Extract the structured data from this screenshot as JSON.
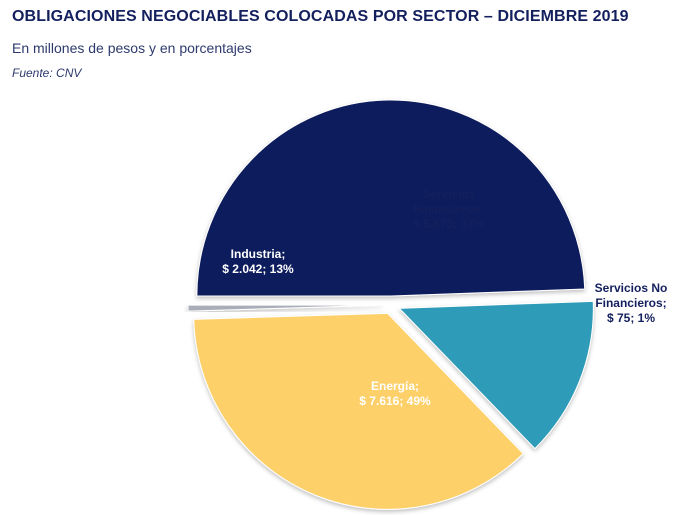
{
  "header": {
    "title": "OBLIGACIONES NEGOCIABLES COLOCADAS POR SECTOR – DICIEMBRE 2019",
    "subtitle": "En millones de pesos y en porcentajes",
    "source": "Fuente: CNV"
  },
  "chart_data": {
    "type": "pie",
    "title": "OBLIGACIONES NEGOCIABLES COLOCADAS POR SECTOR – DICIEMBRE 2019",
    "subtitle": "En millones de pesos y en porcentajes",
    "exploded": true,
    "slices": [
      {
        "name": "Energía",
        "value": 7616,
        "percent": 49,
        "color": "#0e1a5c",
        "label_color": "#ffffff",
        "label_lines": [
          "Energía;",
          "$ 7.616; 49%"
        ]
      },
      {
        "name": "Industria",
        "value": 2042,
        "percent": 13,
        "color": "#2f9bb8",
        "label_color": "#ffffff",
        "label_lines": [
          "Industria;",
          "$ 2.042; 13%"
        ]
      },
      {
        "name": "Servicios Financieros",
        "value": 5673,
        "percent": 37,
        "color": "#fdd069",
        "label_color": "#14205e",
        "label_lines": [
          "Servicios",
          "Financieros;",
          "$ 5.673; 37%"
        ]
      },
      {
        "name": "Servicios No Financieros",
        "value": 75,
        "percent": 1,
        "color": "#a9adb8",
        "label_color": "#14205e",
        "label_lines": [
          "Servicios No",
          "Financieros;",
          "$ 75; 1%"
        ]
      }
    ]
  }
}
